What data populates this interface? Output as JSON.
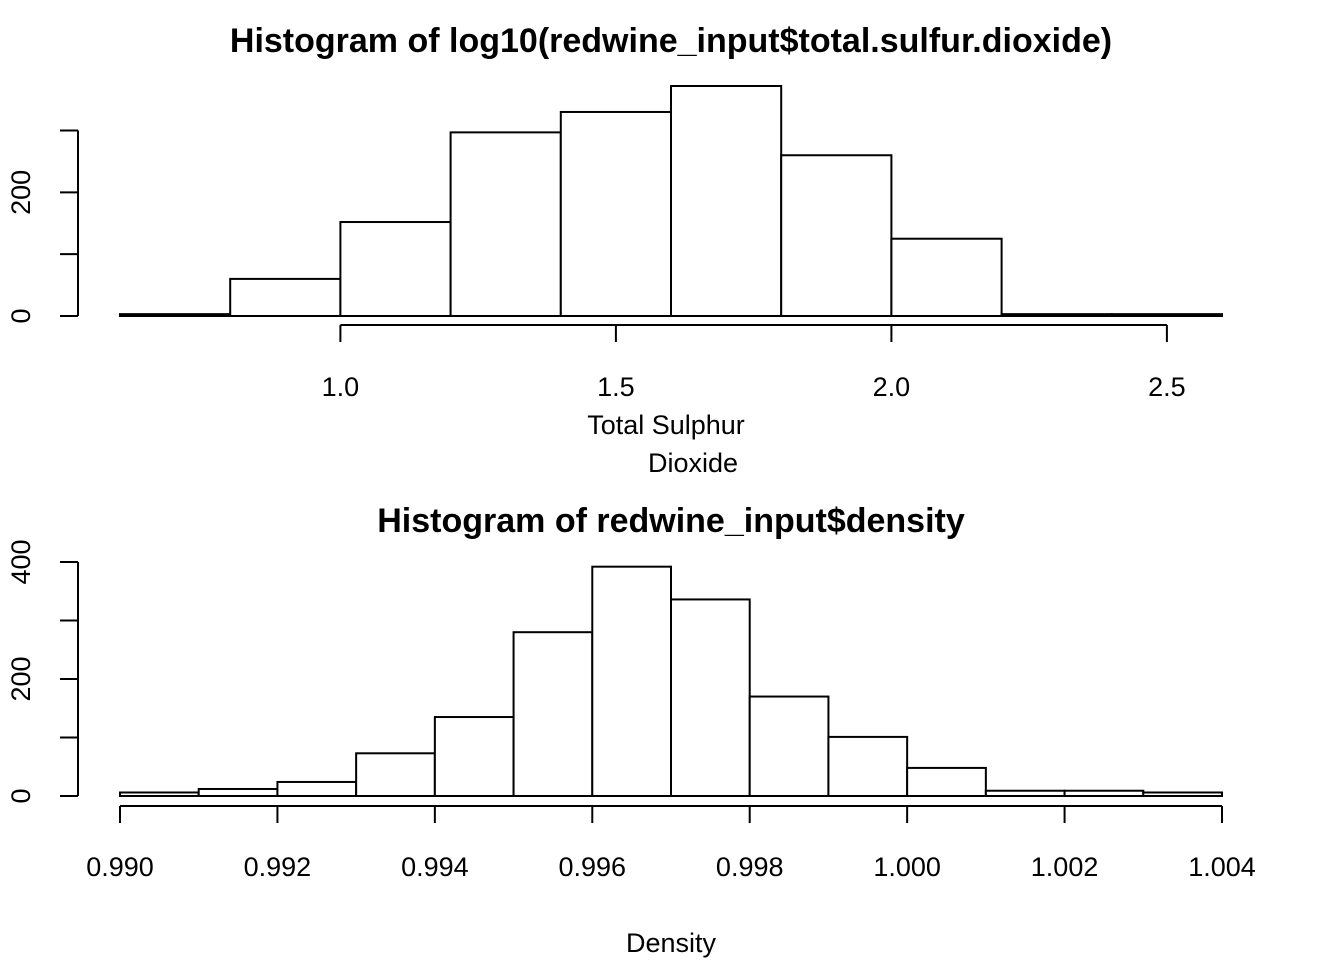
{
  "chart_data": [
    {
      "type": "bar",
      "title": "Histogram of log10(redwine_input$total.sulfur.dioxide)",
      "xlabel_lines": [
        "Total Sulphur",
        "Dioxide"
      ],
      "ylabel": "",
      "bin_edges": [
        0.6,
        0.8,
        1.0,
        1.2,
        1.4,
        1.6,
        1.8,
        2.0,
        2.2,
        2.4,
        2.6
      ],
      "values": [
        3,
        60,
        152,
        297,
        330,
        372,
        260,
        125,
        3,
        3
      ],
      "xlim": [
        0.6,
        2.6
      ],
      "ylim": [
        0,
        372
      ],
      "x_ticks": [
        1.0,
        1.5,
        2.0,
        2.5
      ],
      "x_tick_labels": [
        "1.0",
        "1.5",
        "2.0",
        "2.5"
      ],
      "y_ticks": [
        0,
        100,
        200,
        300
      ],
      "y_tick_labels": [
        "0",
        "200"
      ],
      "y_labeled_ticks": [
        0,
        200
      ]
    },
    {
      "type": "bar",
      "title": "Histogram of redwine_input$density",
      "xlabel_lines": [
        "Density"
      ],
      "ylabel": "",
      "bin_edges": [
        0.99,
        0.991,
        0.992,
        0.993,
        0.994,
        0.995,
        0.996,
        0.997,
        0.998,
        0.999,
        1.0,
        1.001,
        1.002,
        1.003,
        1.004
      ],
      "values": [
        6,
        12,
        24,
        73,
        135,
        280,
        392,
        336,
        170,
        101,
        48,
        9,
        9,
        6
      ],
      "xlim": [
        0.99,
        1.004
      ],
      "ylim": [
        0,
        400
      ],
      "x_ticks": [
        0.99,
        0.992,
        0.994,
        0.996,
        0.998,
        1.0,
        1.002,
        1.004
      ],
      "x_tick_labels": [
        "0.990",
        "0.992",
        "0.994",
        "0.996",
        "0.998",
        "1.000",
        "1.002",
        "1.004"
      ],
      "y_ticks": [
        0,
        100,
        200,
        300,
        400
      ],
      "y_tick_labels": [
        "0",
        "200",
        "400"
      ],
      "y_labeled_ticks": [
        0,
        200,
        400
      ]
    }
  ]
}
